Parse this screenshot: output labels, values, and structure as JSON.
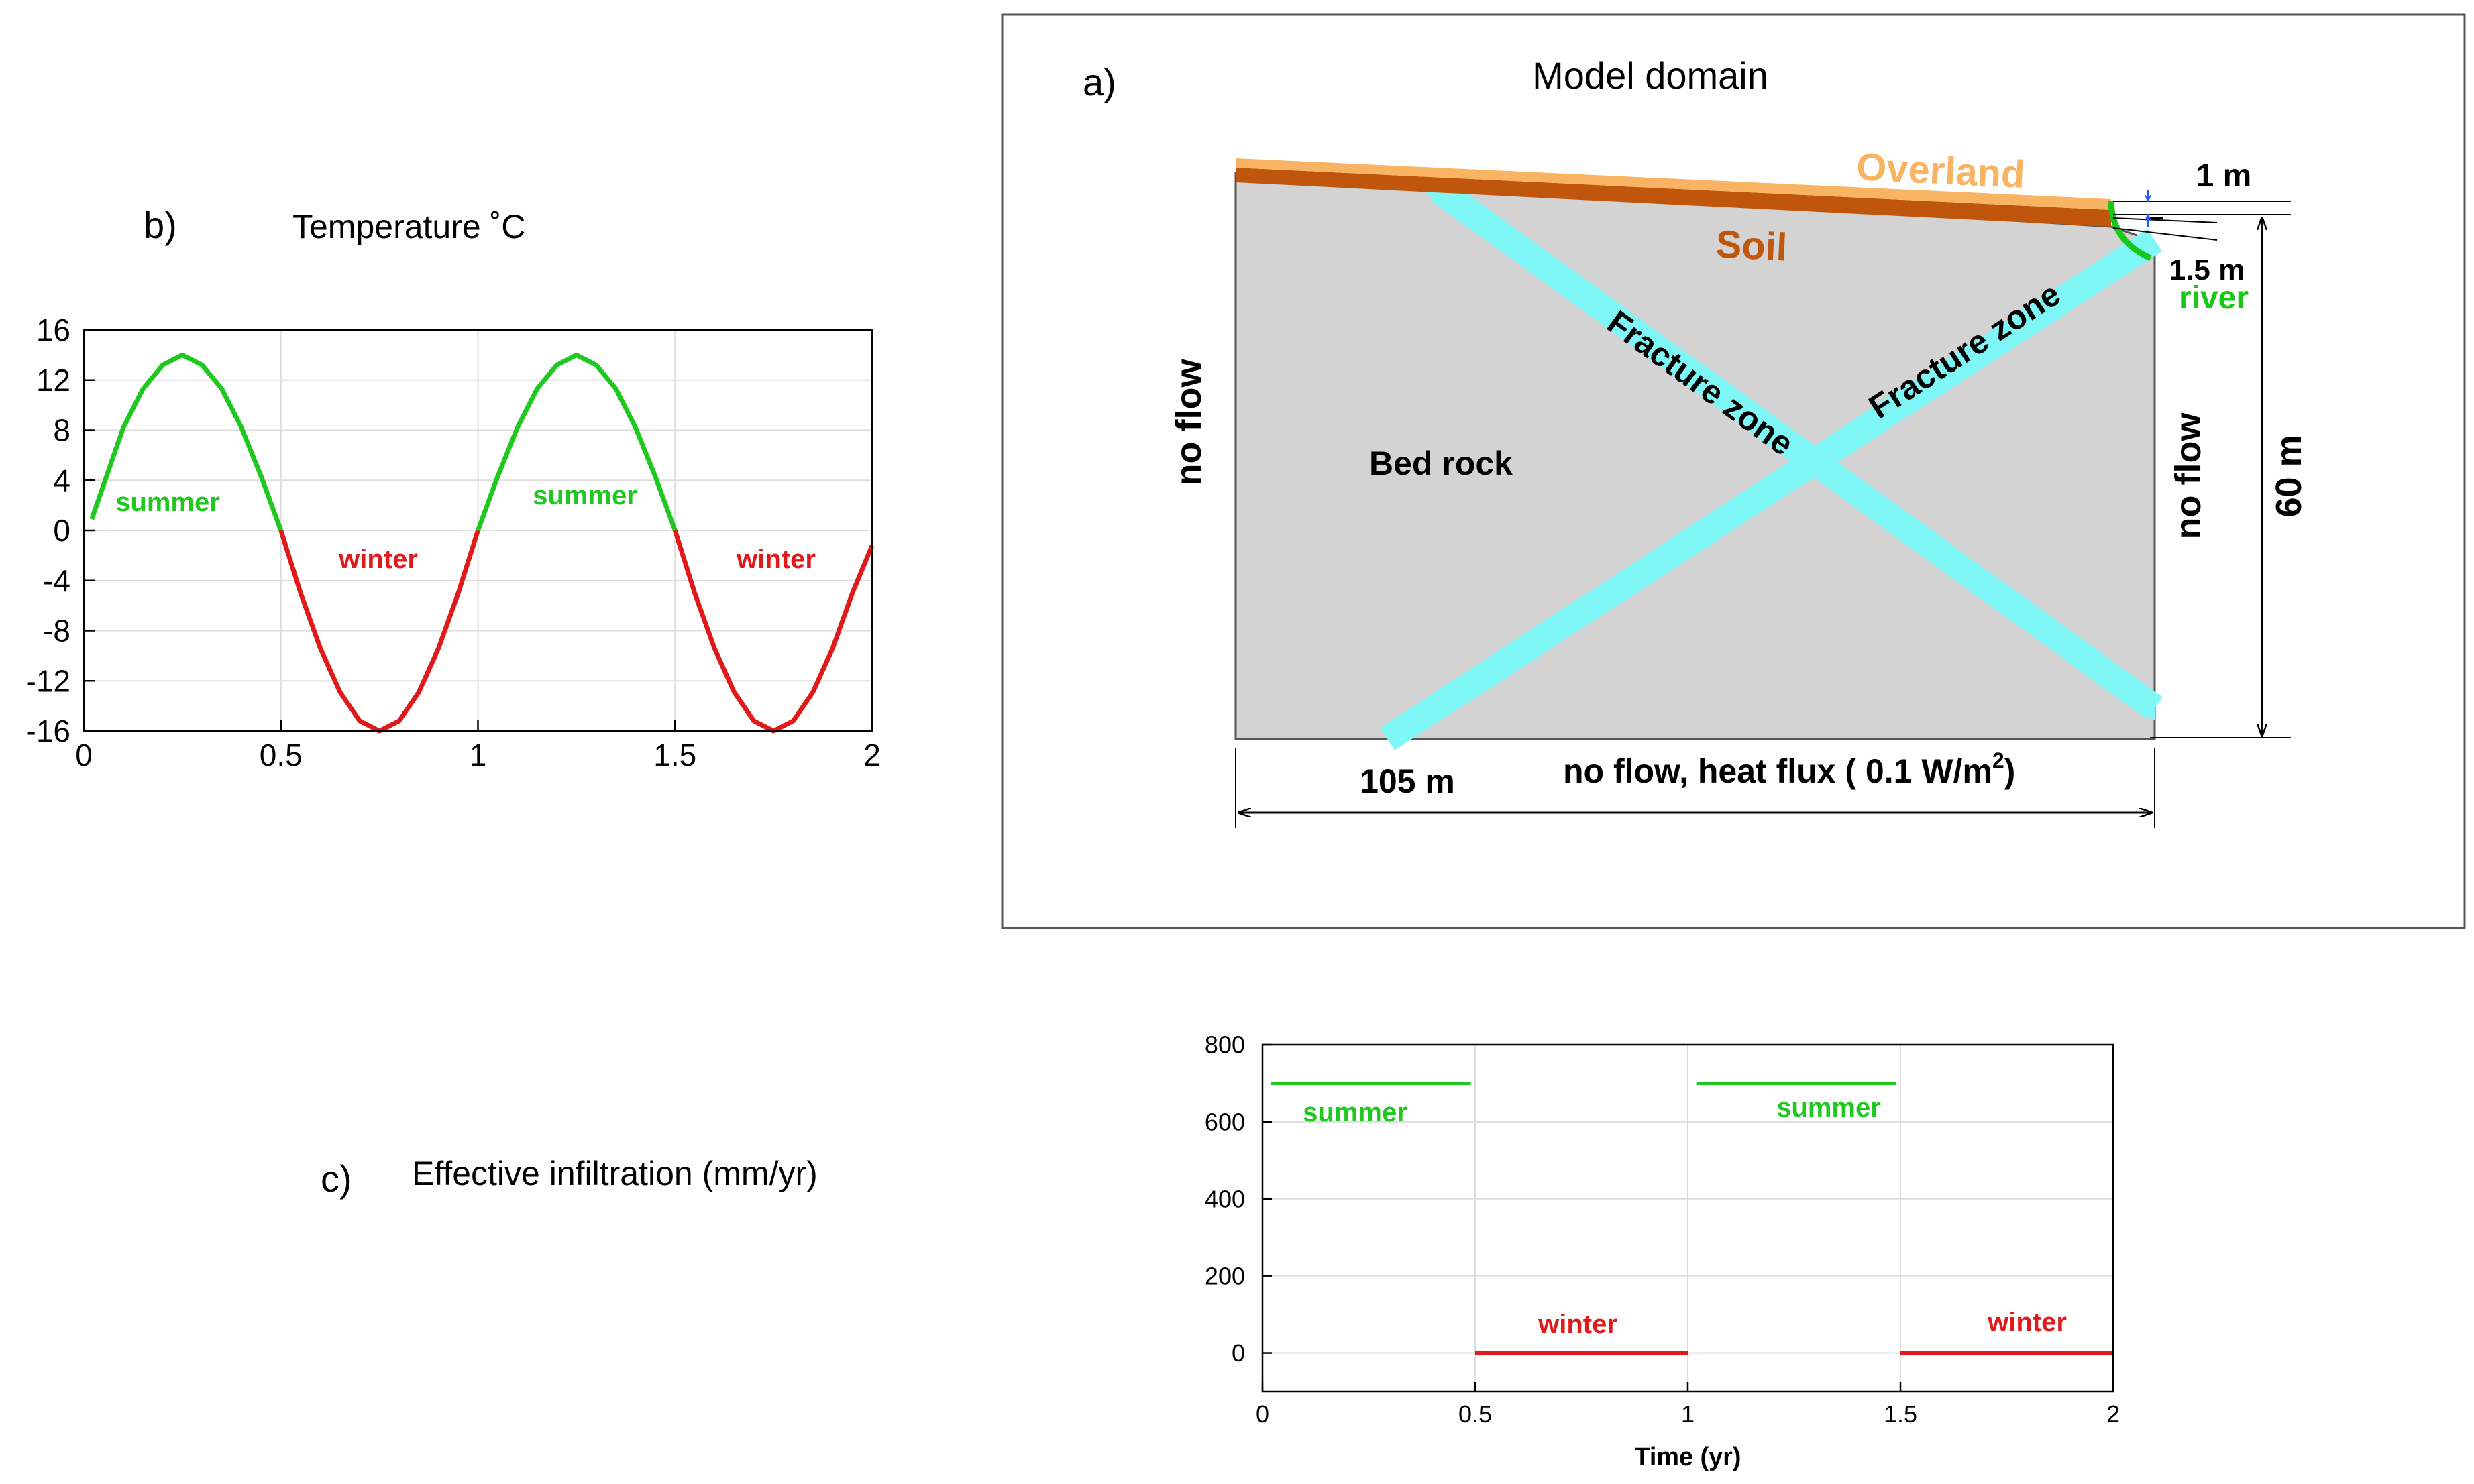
{
  "panel_a": {
    "letter": "a)",
    "title": "Model domain",
    "labels": {
      "overland": "Overland",
      "soil": "Soil",
      "river": "river",
      "fracture_1": "Fracture zone",
      "fracture_2": "Fracture zone",
      "bedrock": "Bed rock",
      "left_bc": "no flow",
      "right_bc": "no flow",
      "bottom_bc": "no flow, heat flux ( 0.1 W/m",
      "bottom_bc_sup": "2",
      "bottom_bc_end": ")",
      "width": "105 m",
      "height": "60 m",
      "overland_thickness": "1 m",
      "river_depth": "1.5 m"
    },
    "colors": {
      "overland": "#f8b462",
      "soil": "#c0560b",
      "bedrock": "#d3d3d3",
      "fracture": "#7ff7f7",
      "river": "#18c818"
    }
  },
  "panel_b": {
    "letter": "b)",
    "title": "Temperature ˚C",
    "summer_label": "summer",
    "winter_label": "winter",
    "chart_data": {
      "type": "line",
      "x_ticks": [
        "0",
        "0.5",
        "1",
        "1.5",
        "2"
      ],
      "y_ticks": [
        "16",
        "12",
        "8",
        "4",
        "0",
        "-4",
        "-8",
        "-12",
        "-16"
      ],
      "xlim": [
        0,
        2
      ],
      "ylim": [
        -16,
        16
      ],
      "grid": true,
      "series": [
        {
          "name": "summer",
          "color": "#1ec81e",
          "x": [
            0.02,
            0.1,
            0.15,
            0.2,
            0.25,
            0.3,
            0.35,
            0.4,
            0.45,
            0.5
          ],
          "y": [
            0.9,
            8.2,
            11.3,
            13.2,
            14,
            13.2,
            11.3,
            8.2,
            4.3,
            0
          ]
        },
        {
          "name": "winter",
          "color": "#e01a1a",
          "x": [
            0.5,
            0.55,
            0.6,
            0.65,
            0.7,
            0.75,
            0.8,
            0.85,
            0.9,
            0.95,
            1.0
          ],
          "y": [
            0,
            -5,
            -9.4,
            -12.9,
            -15.2,
            -16,
            -15.2,
            -12.9,
            -9.4,
            -5,
            0
          ]
        },
        {
          "name": "summer",
          "color": "#1ec81e",
          "x": [
            1.0,
            1.05,
            1.1,
            1.15,
            1.2,
            1.25,
            1.3,
            1.35,
            1.4,
            1.45,
            1.5
          ],
          "y": [
            0,
            4.3,
            8.2,
            11.3,
            13.2,
            14,
            13.2,
            11.3,
            8.2,
            4.3,
            0
          ]
        },
        {
          "name": "winter",
          "color": "#e01a1a",
          "x": [
            1.5,
            1.55,
            1.6,
            1.65,
            1.7,
            1.75,
            1.8,
            1.85,
            1.9,
            1.95,
            2.0
          ],
          "y": [
            0,
            -5,
            -9.4,
            -12.9,
            -15.2,
            -16,
            -15.2,
            -12.9,
            -9.4,
            -5,
            -1.2
          ]
        }
      ]
    }
  },
  "panel_c": {
    "letter": "c)",
    "title": "Effective infiltration (mm/yr)",
    "summer_label": "summer",
    "winter_label": "winter",
    "chart_data": {
      "type": "line",
      "xlabel": "Time (yr)",
      "x_ticks": [
        "0",
        "0.5",
        "1",
        "1.5",
        "2"
      ],
      "y_ticks": [
        "800",
        "600",
        "400",
        "200",
        "0"
      ],
      "xlim": [
        0,
        2
      ],
      "ylim": [
        -100,
        800
      ],
      "grid": true,
      "series": [
        {
          "name": "summer",
          "color": "#1ec81e",
          "x": [
            0.02,
            0.49
          ],
          "y": [
            700,
            700
          ]
        },
        {
          "name": "winter",
          "color": "#e01a1a",
          "x": [
            0.5,
            1.0
          ],
          "y": [
            0,
            0
          ]
        },
        {
          "name": "summer",
          "color": "#1ec81e",
          "x": [
            1.02,
            1.49
          ],
          "y": [
            700,
            700
          ]
        },
        {
          "name": "winter",
          "color": "#e01a1a",
          "x": [
            1.5,
            2.0
          ],
          "y": [
            0,
            0
          ]
        }
      ]
    }
  }
}
